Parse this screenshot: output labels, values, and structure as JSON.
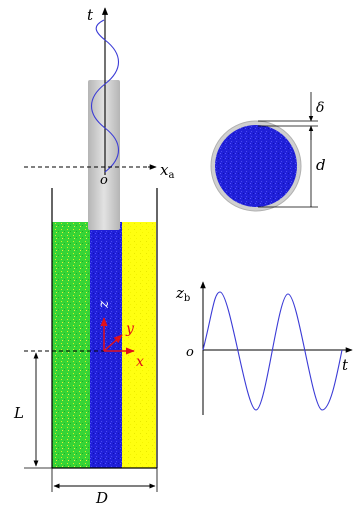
{
  "labels": {
    "t_axis": "t",
    "xa_main": "x",
    "xa_sub": "a",
    "origin_top": "o",
    "delta": "δ",
    "d": "d",
    "zb_main": "z",
    "zb_sub": "b",
    "origin_plot": "o",
    "t_plot": "t",
    "L": "L",
    "D": "D",
    "z_local": "z",
    "y_local": "y",
    "x_local": "x"
  },
  "colors": {
    "green_particles": "#2ed52e",
    "yellow_particles": "#ffff00",
    "blue_particles": "#1f1fdd",
    "tube": "#c8c8c8",
    "curve": "#3b3bd6",
    "red_axes": "#e0101a"
  }
}
